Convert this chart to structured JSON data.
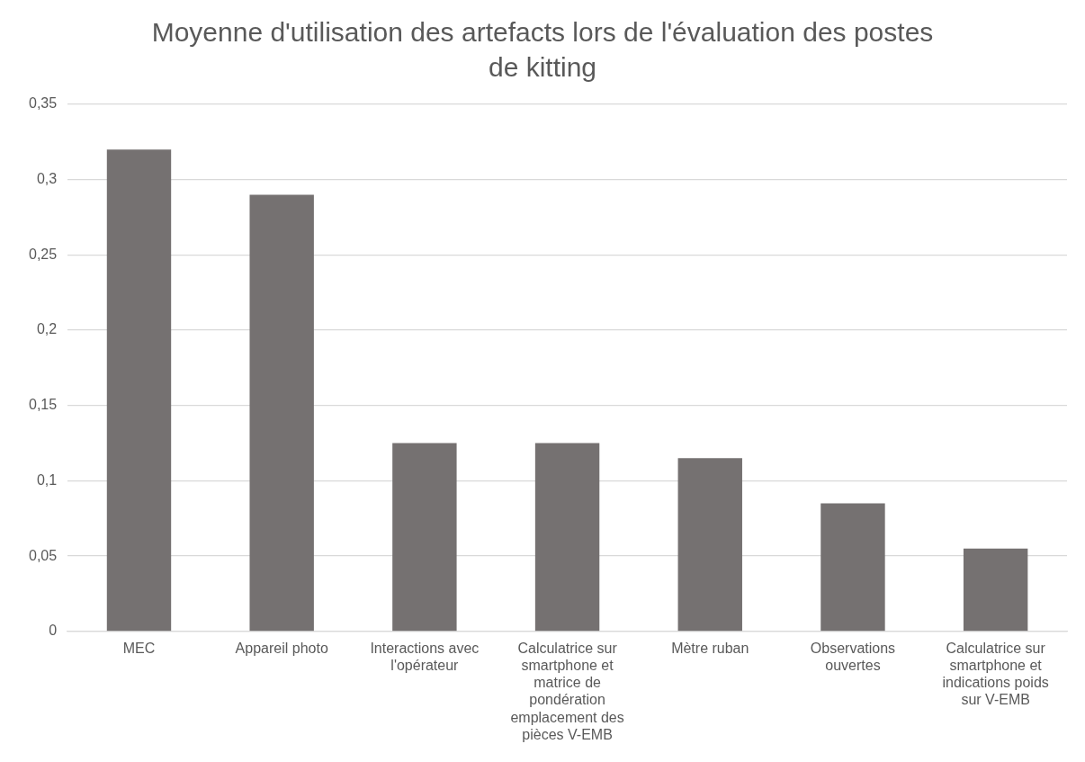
{
  "chart_data": {
    "type": "bar",
    "title": "Moyenne d'utilisation des artefacts lors de l'évaluation des postes de kitting",
    "categories": [
      "MEC",
      "Appareil photo",
      "Interactions avec l'opérateur",
      "Calculatrice sur smartphone et matrice de pondération emplacement des pièces V-EMB",
      "Mètre ruban",
      "Observations ouvertes",
      "Calculatrice sur smartphone et indications poids sur V-EMB"
    ],
    "values": [
      0.32,
      0.29,
      0.125,
      0.125,
      0.115,
      0.085,
      0.055
    ],
    "color": "#757171",
    "ylim": [
      0,
      0.35
    ],
    "yticks": [
      {
        "value": 0,
        "label": "0"
      },
      {
        "value": 0.05,
        "label": "0,05"
      },
      {
        "value": 0.1,
        "label": "0,1"
      },
      {
        "value": 0.15,
        "label": "0,15"
      },
      {
        "value": 0.2,
        "label": "0,2"
      },
      {
        "value": 0.25,
        "label": "0,25"
      },
      {
        "value": 0.3,
        "label": "0,3"
      },
      {
        "value": 0.35,
        "label": "0,35"
      }
    ],
    "grid": "y",
    "legend": false
  }
}
